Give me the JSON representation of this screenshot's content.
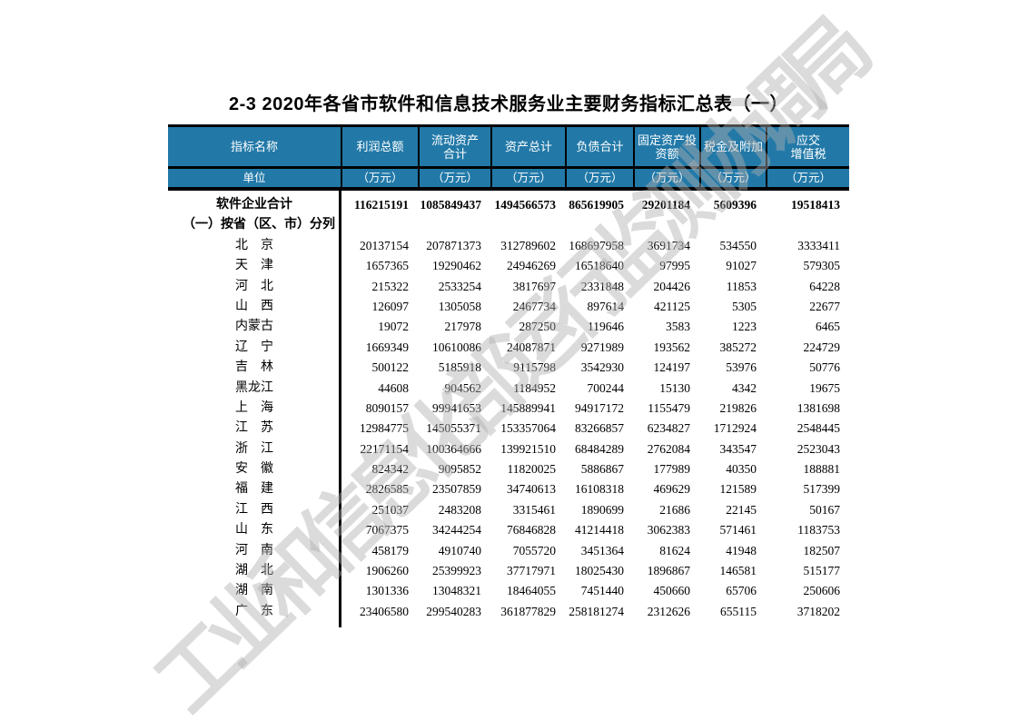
{
  "title": "2-3 2020年各省市软件和信息技术服务业主要财务指标汇总表（一）",
  "watermark": {
    "text": "工业和信息化部运行监测协调局"
  },
  "colors": {
    "header_bg": "#2279A8",
    "header_text": "#FFFFFF",
    "border": "#000000",
    "watermark": "#CFCFCF"
  },
  "table": {
    "name_header": "指标名称",
    "unit_header": "单位",
    "columns": [
      {
        "label": "利润总额",
        "unit": "（万元）"
      },
      {
        "label": "流动资产\n合计",
        "unit": "（万元）"
      },
      {
        "label": "资产总计",
        "unit": "（万元）"
      },
      {
        "label": "负债合计",
        "unit": "（万元）"
      },
      {
        "label": "固定资产投\n资额",
        "unit": "（万元）"
      },
      {
        "label": "税金及附加",
        "unit": "（万元）"
      },
      {
        "label": "应交\n增值税",
        "unit": "（万元）"
      }
    ],
    "rows": [
      {
        "label": "软件企业合计",
        "type": "total",
        "values": [
          "116215191",
          "1085849437",
          "1494566573",
          "865619905",
          "29201184",
          "5609396",
          "19518413"
        ]
      },
      {
        "label": "（一）按省（区、市）分列",
        "type": "section",
        "values": [
          "",
          "",
          "",
          "",
          "",
          "",
          ""
        ]
      },
      {
        "label": "北　京",
        "type": "province",
        "values": [
          "20137154",
          "207871373",
          "312789602",
          "168697958",
          "3691734",
          "534550",
          "3333411"
        ]
      },
      {
        "label": "天　津",
        "type": "province",
        "values": [
          "1657365",
          "19290462",
          "24946269",
          "16518640",
          "97995",
          "91027",
          "579305"
        ]
      },
      {
        "label": "河　北",
        "type": "province",
        "values": [
          "215322",
          "2533254",
          "3817697",
          "2331848",
          "204426",
          "11853",
          "64228"
        ]
      },
      {
        "label": "山　西",
        "type": "province",
        "values": [
          "126097",
          "1305058",
          "2467734",
          "897614",
          "421125",
          "5305",
          "22677"
        ]
      },
      {
        "label": "内蒙古",
        "type": "province",
        "values": [
          "19072",
          "217978",
          "287250",
          "119646",
          "3583",
          "1223",
          "6465"
        ]
      },
      {
        "label": "辽　宁",
        "type": "province",
        "values": [
          "1669349",
          "10610086",
          "24087871",
          "9271989",
          "193562",
          "385272",
          "224729"
        ]
      },
      {
        "label": "吉　林",
        "type": "province",
        "values": [
          "500122",
          "5185918",
          "9115798",
          "3542930",
          "124197",
          "53976",
          "50776"
        ]
      },
      {
        "label": "黑龙江",
        "type": "province",
        "values": [
          "44608",
          "904562",
          "1184952",
          "700244",
          "15130",
          "4342",
          "19675"
        ]
      },
      {
        "label": "上　海",
        "type": "province",
        "values": [
          "8090157",
          "99941653",
          "145889941",
          "94917172",
          "1155479",
          "219826",
          "1381698"
        ]
      },
      {
        "label": "江　苏",
        "type": "province",
        "values": [
          "12984775",
          "145055371",
          "153357064",
          "83266857",
          "6234827",
          "1712924",
          "2548445"
        ]
      },
      {
        "label": "浙　江",
        "type": "province",
        "values": [
          "22171154",
          "100364666",
          "139921510",
          "68484289",
          "2762084",
          "343547",
          "2523043"
        ]
      },
      {
        "label": "安　徽",
        "type": "province",
        "values": [
          "824342",
          "9095852",
          "11820025",
          "5886867",
          "177989",
          "40350",
          "188881"
        ]
      },
      {
        "label": "福　建",
        "type": "province",
        "values": [
          "2826585",
          "23507859",
          "34740613",
          "16108318",
          "469629",
          "121589",
          "517399"
        ]
      },
      {
        "label": "江　西",
        "type": "province",
        "values": [
          "251037",
          "2483208",
          "3315461",
          "1890699",
          "21686",
          "22145",
          "50167"
        ]
      },
      {
        "label": "山　东",
        "type": "province",
        "values": [
          "7067375",
          "34244254",
          "76846828",
          "41214418",
          "3062383",
          "571461",
          "1183753"
        ]
      },
      {
        "label": "河　南",
        "type": "province",
        "values": [
          "458179",
          "4910740",
          "7055720",
          "3451364",
          "81624",
          "41948",
          "182507"
        ]
      },
      {
        "label": "湖　北",
        "type": "province",
        "values": [
          "1906260",
          "25399923",
          "37717971",
          "18025430",
          "1896867",
          "146581",
          "515177"
        ]
      },
      {
        "label": "湖　南",
        "type": "province",
        "values": [
          "1301336",
          "13048321",
          "18464055",
          "7451440",
          "450660",
          "65706",
          "250606"
        ]
      },
      {
        "label": "广　东",
        "type": "province",
        "values": [
          "23406580",
          "299540283",
          "361877829",
          "258181274",
          "2312626",
          "655115",
          "3718202"
        ]
      }
    ]
  }
}
